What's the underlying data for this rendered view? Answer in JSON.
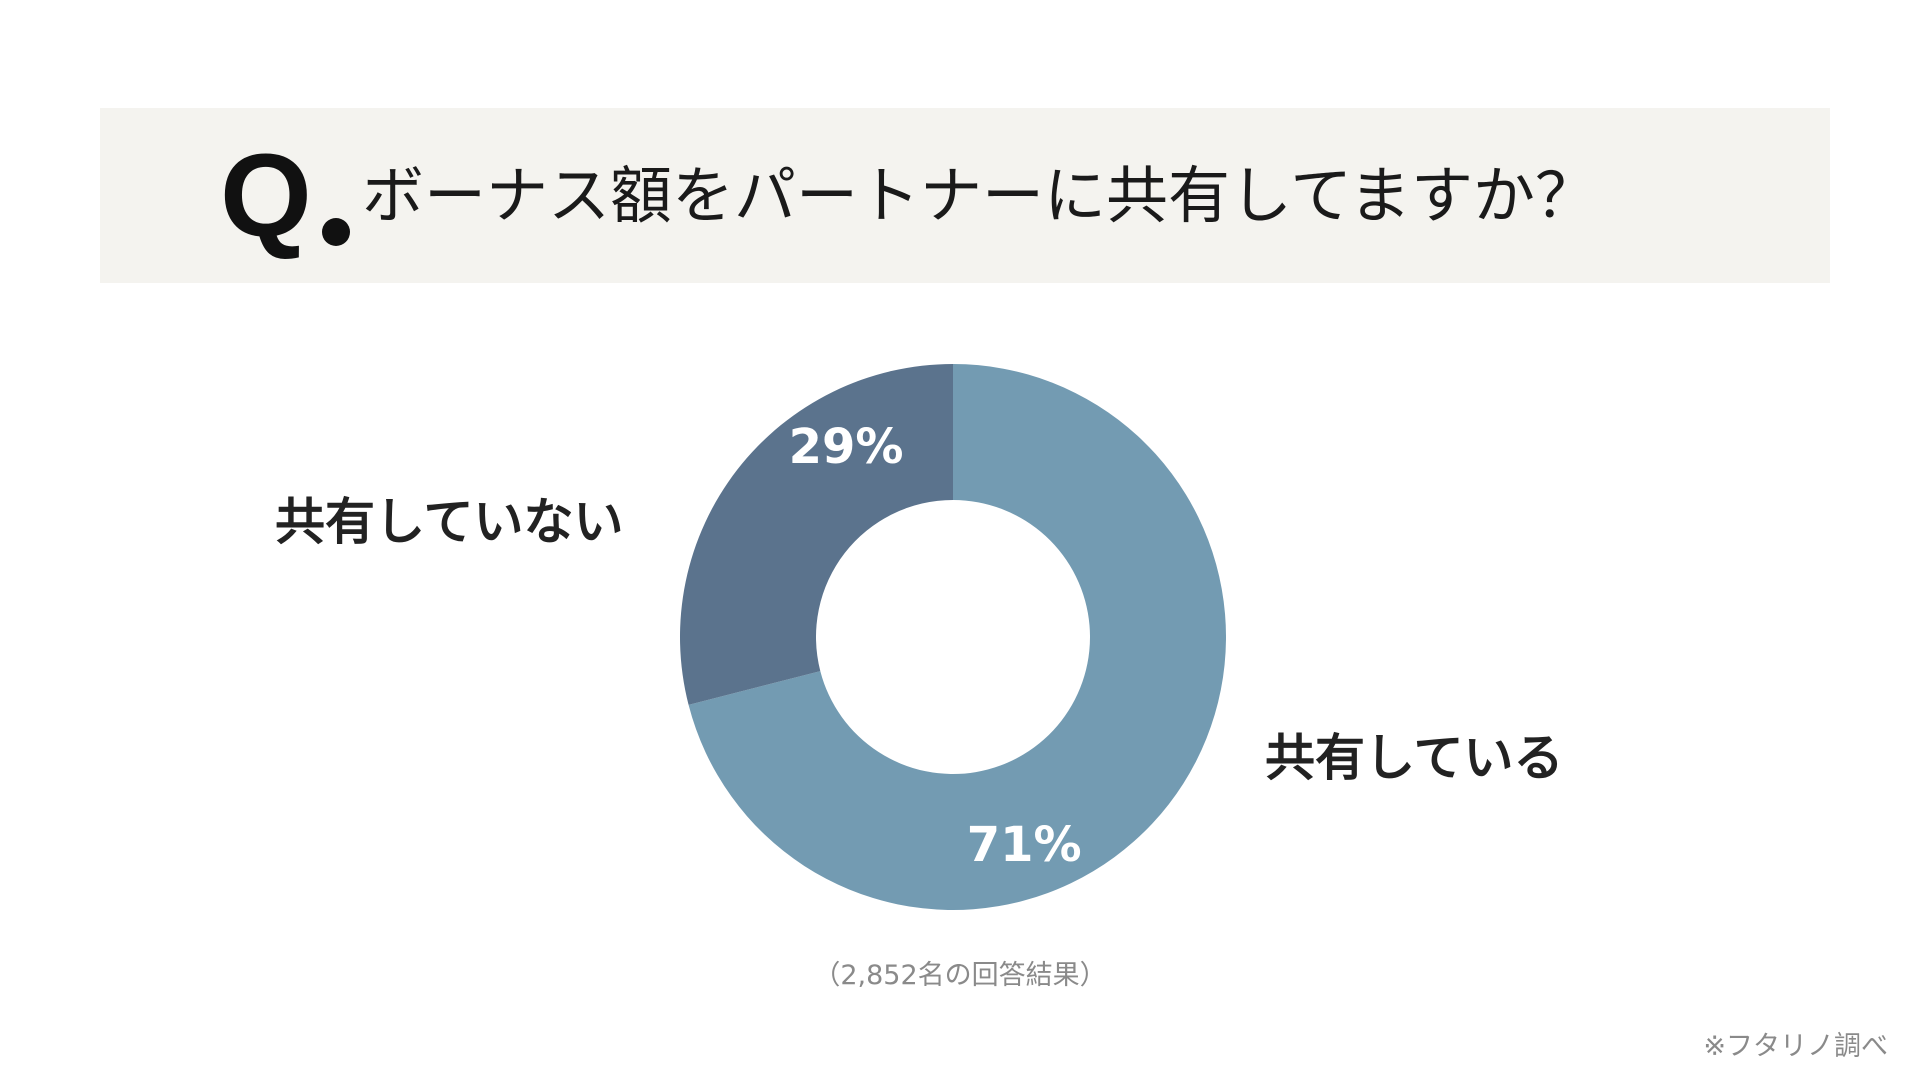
{
  "question": {
    "prefix": "Q",
    "text": "ボーナス額をパートナーに共有してますか？"
  },
  "chart_data": {
    "type": "pie",
    "style": "donut",
    "title": "ボーナス額をパートナーに共有してますか？",
    "categories": [
      "共有している",
      "共有していない"
    ],
    "values": [
      71,
      29
    ],
    "value_labels": [
      "71%",
      "29%"
    ],
    "unit": "%",
    "colors": [
      "#739bb2",
      "#5b738d"
    ],
    "legend": "direct-labels"
  },
  "labels": {
    "shared": "共有している",
    "not_shared": "共有していない"
  },
  "note": "（2,852名の回答結果）",
  "source": "※フタリノ調べ"
}
